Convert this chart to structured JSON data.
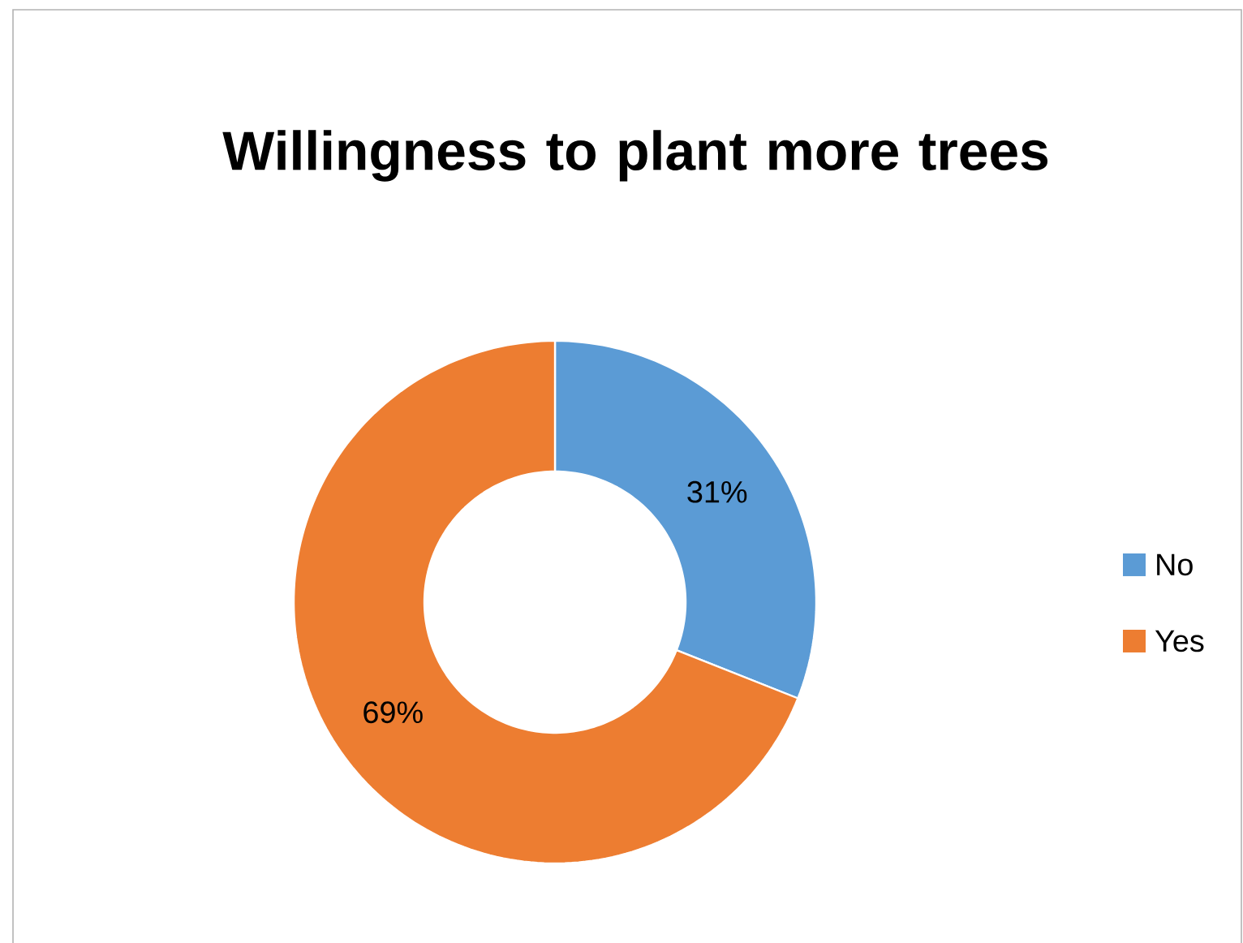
{
  "chart_data": {
    "type": "donut",
    "title": "Willingness to plant more trees",
    "categories": [
      "No",
      "Yes"
    ],
    "values": [
      31,
      69
    ],
    "colors": [
      "#5b9bd5",
      "#ed7d31"
    ],
    "value_labels": [
      "31%",
      "69%"
    ],
    "legend": "right"
  }
}
